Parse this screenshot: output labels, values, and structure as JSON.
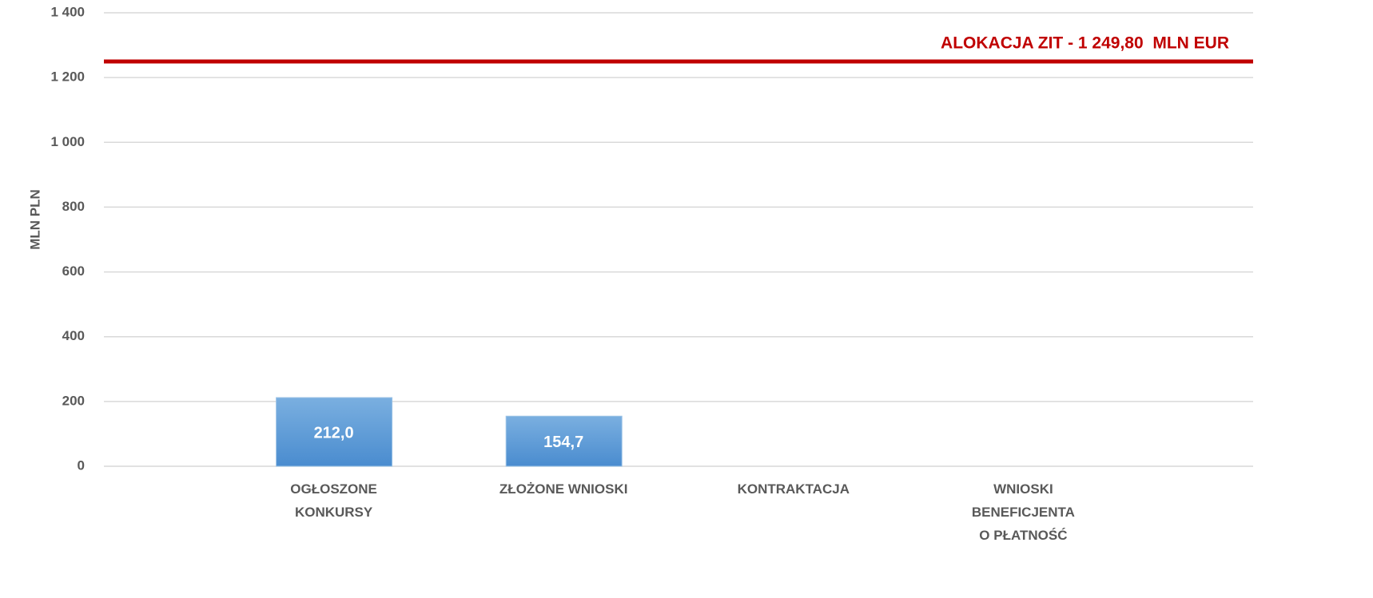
{
  "chart_data": {
    "type": "bar",
    "y_label": "MLN PLN",
    "categories": [
      [
        "OGŁOSZONE",
        "KONKURSY"
      ],
      [
        "ZŁOŻONE WNIOSKI"
      ],
      [
        "KONTRAKTACJA"
      ],
      [
        "WNIOSKI",
        "BENEFICJENTA",
        "O PŁATNOŚĆ"
      ]
    ],
    "values": [
      212.0,
      154.7,
      null,
      null
    ],
    "value_labels": [
      "212,0",
      "154,7",
      null,
      null
    ],
    "color": "#5b9bd5",
    "ylim": [
      0,
      1400
    ],
    "yticks": [
      0,
      200,
      400,
      600,
      800,
      {
        "value": 1000,
        "label": "1 000"
      },
      {
        "value": 1200,
        "label": "1 200"
      },
      {
        "value": 1400,
        "label": "1 400"
      }
    ],
    "grid": true,
    "reference_line": {
      "value": 1249.8,
      "label": "ALOKACJA ZIT - 1 249,80  MLN EUR",
      "color": "#c00000"
    }
  }
}
